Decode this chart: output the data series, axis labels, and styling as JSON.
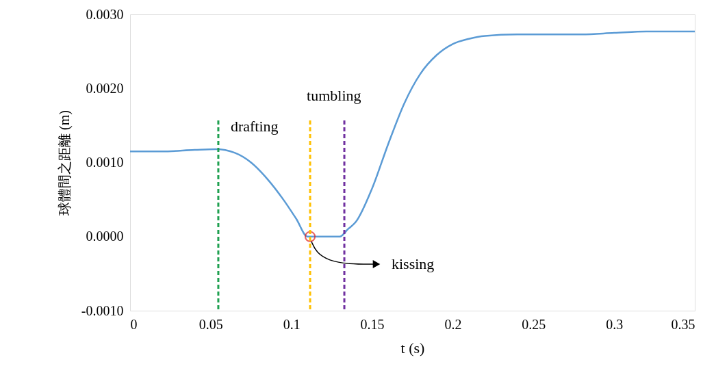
{
  "chart_data": {
    "type": "line",
    "xlabel": "t (s)",
    "ylabel": "球體間之距離 (m)",
    "x": [
      0,
      0.02,
      0.04,
      0.053,
      0.065,
      0.075,
      0.085,
      0.095,
      0.103,
      0.11,
      0.115,
      0.13,
      0.135,
      0.14,
      0.15,
      0.16,
      0.17,
      0.18,
      0.19,
      0.2,
      0.21,
      0.22,
      0.24,
      0.26,
      0.28,
      0.3,
      0.32,
      0.35
    ],
    "series": [
      {
        "color": "#5b9bd5",
        "values": [
          0.00115,
          0.00115,
          0.00117,
          0.00118,
          0.00113,
          0.001,
          0.00078,
          0.0005,
          0.00024,
          0,
          0,
          0,
          0.0001,
          0.0002,
          0.00065,
          0.00125,
          0.0018,
          0.0022,
          0.00245,
          0.0026,
          0.00267,
          0.00271,
          0.00273,
          0.00273,
          0.00273,
          0.00275,
          0.00277,
          0.00277
        ]
      },
      {
        "type": "scatter",
        "marker": "circle",
        "x": [
          0.1116
        ],
        "color": "#e02020",
        "values": [
          0
        ]
      }
    ],
    "xlim": [
      0,
      0.35
    ],
    "xticks": [
      0,
      0.05,
      0.1,
      0.15,
      0.2,
      0.25,
      0.3,
      0.35
    ],
    "ylim": [
      -0.001,
      0.003
    ],
    "yticks": [
      {
        "value": -0.001,
        "label": "-0.0010"
      },
      {
        "value": 0,
        "label": "0.0000"
      },
      {
        "value": 0.001,
        "label": "0.0010"
      },
      {
        "value": 0.002,
        "label": "0.0020"
      },
      {
        "value": 0.003,
        "label": "0.0030"
      }
    ],
    "ref_lines": [
      {
        "axis": "x",
        "value": 0.0547,
        "label": "drafting",
        "color": "#1fa050",
        "line_style": "dashed"
      },
      {
        "axis": "x",
        "value": 0.1116,
        "label": "tumbling",
        "color": "#ffc000",
        "line_style": "dashed"
      },
      {
        "axis": "x",
        "value": 0.1328,
        "label": null,
        "color": "#7030a0",
        "line_style": "dashed"
      }
    ],
    "annotations": [
      "kissing"
    ],
    "grid": false,
    "marker": "none",
    "line_style": "solid"
  }
}
